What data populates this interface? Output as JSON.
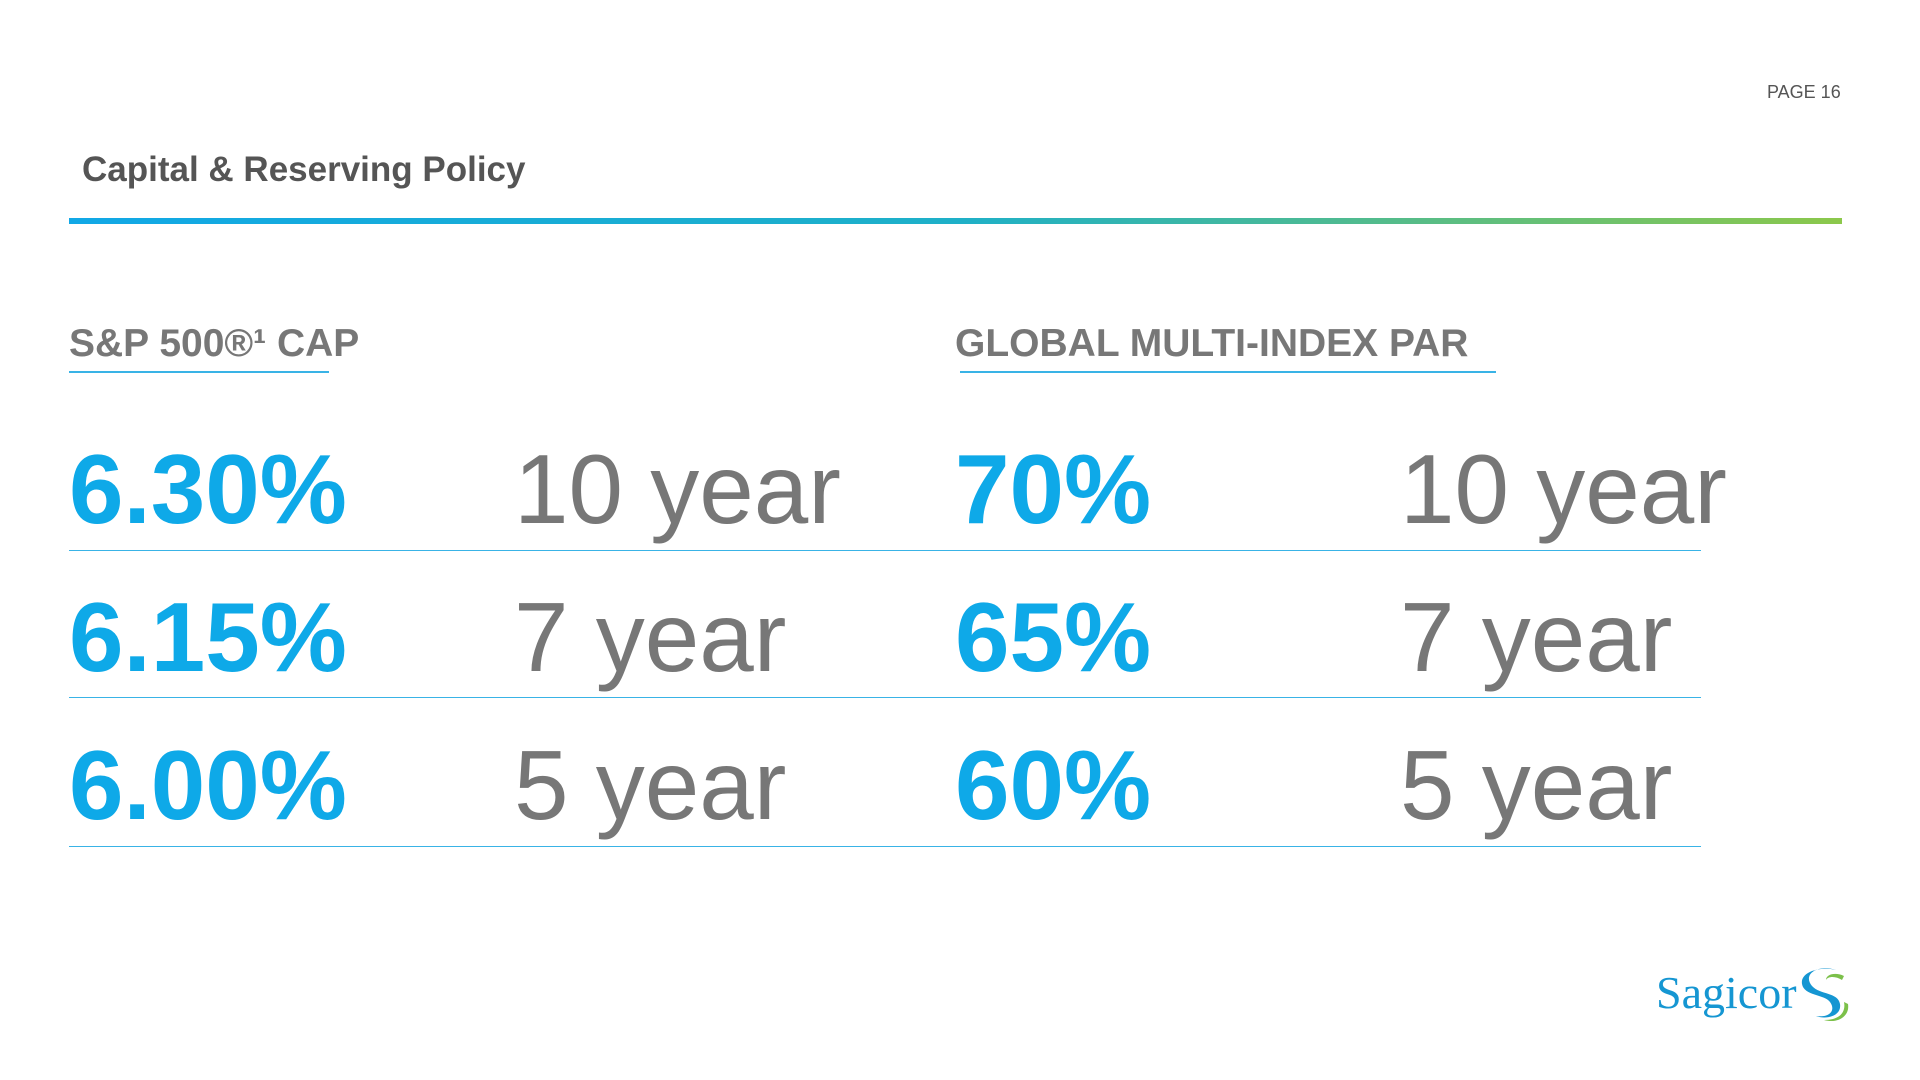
{
  "header": {
    "page": "PAGE 16",
    "title": "Capital & Reserving Policy"
  },
  "sections": [
    {
      "heading": "S&P 500®¹ CAP",
      "rows": [
        {
          "rate": "6.30%",
          "term": "10 year"
        },
        {
          "rate": "6.15%",
          "term": "7 year"
        },
        {
          "rate": "6.00%",
          "term": "5 year"
        }
      ]
    },
    {
      "heading": "GLOBAL MULTI-INDEX PAR",
      "rows": [
        {
          "rate": "70%",
          "term": "10 year"
        },
        {
          "rate": "65%",
          "term": "7 year"
        },
        {
          "rate": "60%",
          "term": "5 year"
        }
      ]
    }
  ],
  "footer": {
    "logo": "Sagicor"
  }
}
